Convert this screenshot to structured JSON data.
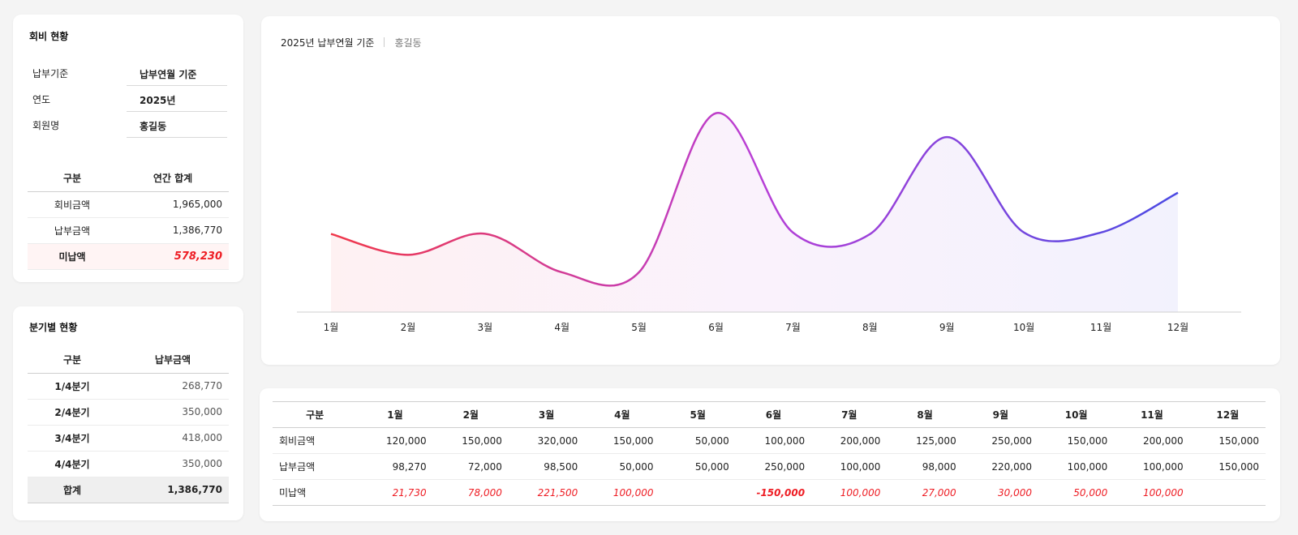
{
  "summary": {
    "title": "회비 현황",
    "info": [
      {
        "label": "납부기준",
        "value": "납부연월 기준"
      },
      {
        "label": "연도",
        "value": "2025년"
      },
      {
        "label": "회원명",
        "value": "홍길동"
      }
    ],
    "table": {
      "headers": [
        "구분",
        "연간 합계"
      ],
      "rows": [
        {
          "label": "회비금액",
          "value": "1,965,000"
        },
        {
          "label": "납부금액",
          "value": "1,386,770"
        },
        {
          "label": "미납액",
          "value": "578,230"
        }
      ]
    }
  },
  "quarterly": {
    "title": "분기별 현황",
    "headers": [
      "구분",
      "납부금액"
    ],
    "rows": [
      {
        "label": "1/4분기",
        "value": "268,770"
      },
      {
        "label": "2/4분기",
        "value": "350,000"
      },
      {
        "label": "3/4분기",
        "value": "418,000"
      },
      {
        "label": "4/4분기",
        "value": "350,000"
      }
    ],
    "total": {
      "label": "합계",
      "value": "1,386,770"
    }
  },
  "chart_header": {
    "basis": "2025년 납부연월 기준",
    "member": "홍길동"
  },
  "chart_data": {
    "type": "area",
    "categories": [
      "1월",
      "2월",
      "3월",
      "4월",
      "5월",
      "6월",
      "7월",
      "8월",
      "9월",
      "10월",
      "11월",
      "12월"
    ],
    "series": [
      {
        "values": [
          98270,
          72000,
          98500,
          50000,
          50000,
          250000,
          100000,
          98000,
          220000,
          100000,
          100000,
          150000
        ]
      }
    ],
    "title": "",
    "xlabel": "",
    "ylabel": "",
    "ylim": [
      0,
      270000
    ],
    "grid": false,
    "colors": {
      "start": "#f0384a",
      "mid": "#b93fd6",
      "end": "#4b4ae3"
    }
  },
  "monthly": {
    "headers": [
      "구분",
      "1월",
      "2월",
      "3월",
      "4월",
      "5월",
      "6월",
      "7월",
      "8월",
      "9월",
      "10월",
      "11월",
      "12월"
    ],
    "rows": [
      {
        "label": "회비금액",
        "values": [
          "120,000",
          "150,000",
          "320,000",
          "150,000",
          "50,000",
          "100,000",
          "200,000",
          "125,000",
          "250,000",
          "150,000",
          "200,000",
          "150,000"
        ]
      },
      {
        "label": "납부금액",
        "values": [
          "98,270",
          "72,000",
          "98,500",
          "50,000",
          "50,000",
          "250,000",
          "100,000",
          "98,000",
          "220,000",
          "100,000",
          "100,000",
          "150,000"
        ]
      },
      {
        "label": "미납액",
        "values": [
          "21,730",
          "78,000",
          "221,500",
          "100,000",
          "",
          "-150,000",
          "100,000",
          "27,000",
          "30,000",
          "50,000",
          "100,000",
          ""
        ]
      }
    ]
  }
}
